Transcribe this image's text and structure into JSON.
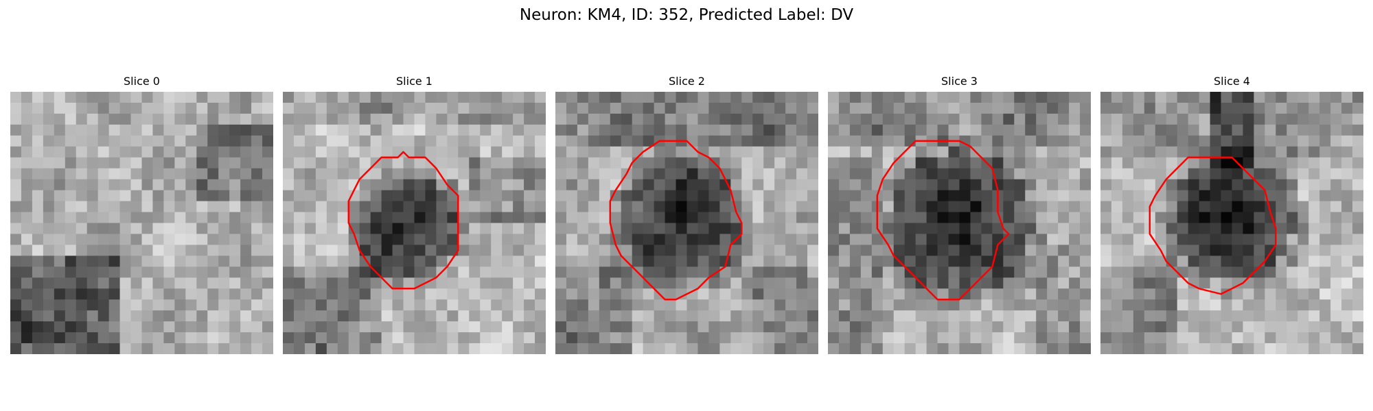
{
  "figure": {
    "title": "Neuron: KM4, ID: 352, Predicted Label: DV",
    "contour_color": "#ff0000",
    "background_color": "#ffffff"
  },
  "panels": [
    {
      "title": "Slice 0",
      "has_contour": false,
      "icon": "grayscale-micrograph",
      "dark_blob": null
    },
    {
      "title": "Slice 1",
      "has_contour": true,
      "icon": "grayscale-micrograph",
      "dark_blob": "center"
    },
    {
      "title": "Slice 2",
      "has_contour": true,
      "icon": "grayscale-micrograph",
      "dark_blob": "center"
    },
    {
      "title": "Slice 3",
      "has_contour": true,
      "icon": "grayscale-micrograph",
      "dark_blob": "center"
    },
    {
      "title": "Slice 4",
      "has_contour": true,
      "icon": "grayscale-micrograph",
      "dark_blob": "center"
    }
  ]
}
